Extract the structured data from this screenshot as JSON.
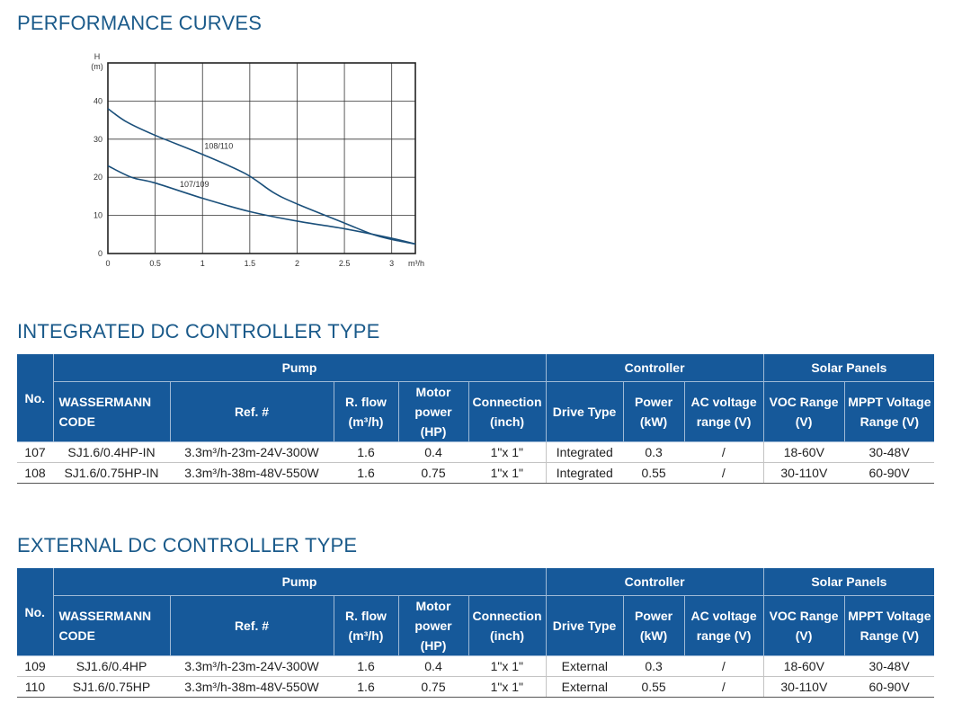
{
  "sections": {
    "performance_title": "PERFORMANCE CURVES",
    "integrated_title": "INTEGRATED DC CONTROLLER TYPE",
    "external_title": "EXTERNAL DC CONTROLLER TYPE"
  },
  "chart_data": {
    "type": "line",
    "ylabel_top": "H",
    "ylabel_unit": "(m)",
    "xlabel": "m³/h",
    "xlim": [
      0,
      3.25
    ],
    "ylim": [
      0,
      50
    ],
    "xticks": [
      0,
      0.5,
      1,
      1.5,
      2,
      2.5,
      3
    ],
    "xtick_labels": [
      "0",
      "0.5",
      "1",
      "1.5",
      "2",
      "2.5",
      "3"
    ],
    "yticks": [
      0,
      10,
      20,
      30,
      40
    ],
    "ytick_labels": [
      "0",
      "10",
      "20",
      "30",
      "40"
    ],
    "grid": true,
    "series": [
      {
        "name": "108/110",
        "x": [
          0,
          0.2,
          0.5,
          1.0,
          1.45,
          1.75,
          2.0,
          2.5,
          2.8,
          3.0,
          3.25
        ],
        "y": [
          38,
          34.5,
          31,
          26,
          21,
          16,
          13,
          8,
          5,
          3.7,
          2.5
        ]
      },
      {
        "name": "107/109",
        "x": [
          0,
          0.25,
          0.5,
          1.0,
          1.5,
          2.0,
          2.5,
          3.0,
          3.25
        ],
        "y": [
          23,
          20,
          18.5,
          14.5,
          11,
          8.5,
          6.5,
          4,
          2.5
        ]
      }
    ]
  },
  "tables": {
    "headers": {
      "group_pump": "Pump",
      "group_controller": "Controller",
      "group_solar": "Solar Panels",
      "no": "No.",
      "code": "WASSERMANN CODE",
      "ref": "Ref. #",
      "rflow_1": "R. flow",
      "rflow_2": "(m³/h)",
      "motor_1": "Motor",
      "motor_2": "power (HP)",
      "conn_1": "Connection",
      "conn_2": "(inch)",
      "drive": "Drive Type",
      "power_1": "Power",
      "power_2": "(kW)",
      "ac_1": "AC voltage",
      "ac_2": "range (V)",
      "voc_1": "VOC Range",
      "voc_2": "(V)",
      "mppt_1": "MPPT Voltage",
      "mppt_2": "Range (V)"
    },
    "integrated": [
      {
        "no": "107",
        "code": "SJ1.6/0.4HP-IN",
        "ref": "3.3m³/h-23m-24V-300W",
        "flow": "1.6",
        "motor": "0.4",
        "conn": "1\"x 1\"",
        "drive": "Integrated",
        "power": "0.3",
        "ac": "/",
        "voc": "18-60V",
        "mppt": "30-48V"
      },
      {
        "no": "108",
        "code": "SJ1.6/0.75HP-IN",
        "ref": "3.3m³/h-38m-48V-550W",
        "flow": "1.6",
        "motor": "0.75",
        "conn": "1\"x 1\"",
        "drive": "Integrated",
        "power": "0.55",
        "ac": "/",
        "voc": "30-110V",
        "mppt": "60-90V"
      }
    ],
    "external": [
      {
        "no": "109",
        "code": "SJ1.6/0.4HP",
        "ref": "3.3m³/h-23m-24V-300W",
        "flow": "1.6",
        "motor": "0.4",
        "conn": "1\"x 1\"",
        "drive": "External",
        "power": "0.3",
        "ac": "/",
        "voc": "18-60V",
        "mppt": "30-48V"
      },
      {
        "no": "110",
        "code": "SJ1.6/0.75HP",
        "ref": "3.3m³/h-38m-48V-550W",
        "flow": "1.6",
        "motor": "0.75",
        "conn": "1\"x 1\"",
        "drive": "External",
        "power": "0.55",
        "ac": "/",
        "voc": "30-110V",
        "mppt": "60-90V"
      }
    ]
  },
  "colors": {
    "header_bg": "#16599a",
    "title": "#1a5a8a",
    "curve": "#1a4f7a"
  }
}
